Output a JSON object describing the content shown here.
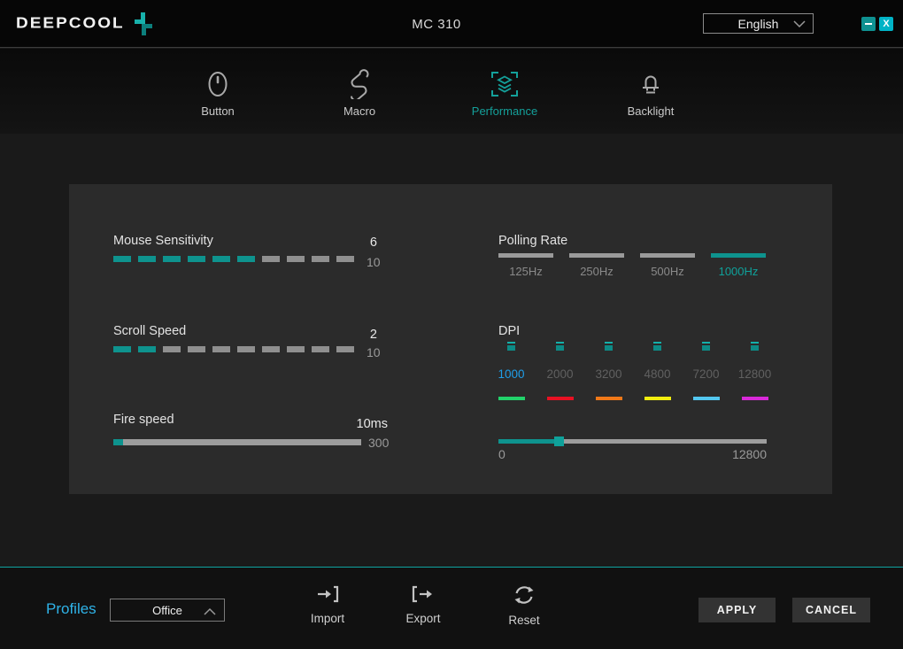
{
  "titlebar": {
    "logo_text": "DEEPCOOL",
    "title": "MC 310",
    "language": "English",
    "close_label": "X"
  },
  "nav": {
    "tabs": [
      {
        "label": "Button",
        "icon": "mouse-icon",
        "active": false
      },
      {
        "label": "Macro",
        "icon": "scroll-icon",
        "active": false
      },
      {
        "label": "Performance",
        "icon": "layers-frame-icon",
        "active": true
      },
      {
        "label": "Backlight",
        "icon": "led-icon",
        "active": false
      }
    ]
  },
  "performance": {
    "mouse_sensitivity": {
      "label": "Mouse Sensitivity",
      "value": "6",
      "max": "10",
      "segments": 10,
      "filled": 6
    },
    "scroll_speed": {
      "label": "Scroll Speed",
      "value": "2",
      "max": "10",
      "segments": 10,
      "filled": 2
    },
    "fire_speed": {
      "label": "Fire speed",
      "value": "10ms",
      "max": "300",
      "fill_pct": 4
    },
    "polling_rate": {
      "label": "Polling Rate",
      "options": [
        "125Hz",
        "250Hz",
        "500Hz",
        "1000Hz"
      ],
      "selected": "1000Hz"
    },
    "dpi": {
      "label": "DPI",
      "stages": [
        {
          "label": "1000",
          "color": "#22d36b",
          "selected": true
        },
        {
          "label": "2000",
          "color": "#e81123",
          "selected": false
        },
        {
          "label": "3200",
          "color": "#f07818",
          "selected": false
        },
        {
          "label": "4800",
          "color": "#f2ee0f",
          "selected": false
        },
        {
          "label": "7200",
          "color": "#53c7ef",
          "selected": false
        },
        {
          "label": "12800",
          "color": "#d929d9",
          "selected": false
        }
      ],
      "slider": {
        "min_label": "0",
        "max_label": "12800",
        "fill_pct": 22.5
      }
    }
  },
  "footer": {
    "profiles_label": "Profiles",
    "profile_value": "Office",
    "actions": [
      {
        "label": "Import",
        "icon": "import-icon"
      },
      {
        "label": "Export",
        "icon": "export-icon"
      },
      {
        "label": "Reset",
        "icon": "reset-icon"
      }
    ],
    "apply_label": "APPLY",
    "cancel_label": "CANCEL"
  },
  "colors": {
    "accent_teal": "#0e938e",
    "dpi_selected_blue": "#1f9ee9",
    "profiles_blue": "#2fb3e8",
    "segment_gray": "#8f8f8f"
  }
}
